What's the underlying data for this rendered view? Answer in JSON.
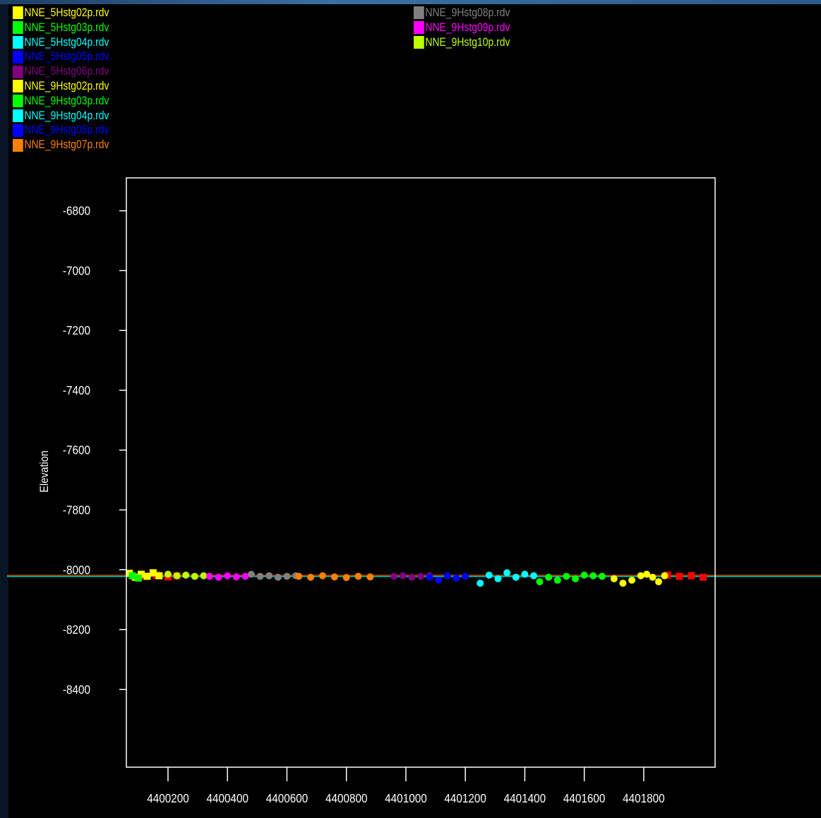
{
  "chart_data": {
    "type": "scatter",
    "title": "",
    "xlabel": "",
    "ylabel": "Elevation",
    "xlim": [
      4400060,
      4402040
    ],
    "ylim": [
      -8660,
      -6690
    ],
    "x_ticks": [
      4400200,
      4400400,
      4400600,
      4400800,
      4401000,
      4401200,
      4401400,
      4401600,
      4401800
    ],
    "y_ticks": [
      -6800,
      -7000,
      -7200,
      -7400,
      -7600,
      -7800,
      -8000,
      -8200,
      -8400
    ],
    "grid": false,
    "legend_placement": "top-left and top-center",
    "legend": [
      {
        "name": "NNE_5Hstg02p.rdv",
        "color": "#ffff00",
        "column": "left"
      },
      {
        "name": "NNE_5Hstg03p.rdv",
        "color": "#00ff00",
        "column": "left"
      },
      {
        "name": "NNE_5Hstg04p.rdv",
        "color": "#00ffff",
        "column": "left"
      },
      {
        "name": "NNE_5Hstg05p.rdv",
        "color": "#0000ff",
        "column": "left"
      },
      {
        "name": "NNE_5Hstg06p.rdv",
        "color": "#800080",
        "column": "left"
      },
      {
        "name": "NNE_9Hstg02p.rdv",
        "color": "#ffff00",
        "column": "left"
      },
      {
        "name": "NNE_9Hstg03p.rdv",
        "color": "#00ff00",
        "column": "left"
      },
      {
        "name": "NNE_9Hstg04p.rdv",
        "color": "#00ffff",
        "column": "left"
      },
      {
        "name": "NNE_9Hstg05p.rdv",
        "color": "#0000ff",
        "column": "left"
      },
      {
        "name": "NNE_9Hstg07p.rdv",
        "color": "#ff8000",
        "column": "left"
      },
      {
        "name": "NNE_9Hstg08p.rdv",
        "color": "#808080",
        "column": "right"
      },
      {
        "name": "NNE_9Hstg09p.rdv",
        "color": "#ff00ff",
        "column": "right"
      },
      {
        "name": "NNE_9Hstg10p.rdv",
        "color": "#bfff00",
        "column": "right"
      }
    ],
    "series": [
      {
        "color": "#ff0000",
        "x": [
          4401880,
          4401920,
          4401960,
          4402000,
          4400120,
          4400160,
          4400200,
          4400230
        ],
        "y": [
          -8018,
          -8022,
          -8020,
          -8025,
          -8022,
          -8018,
          -8024,
          -8020
        ]
      },
      {
        "color": "#ffff00",
        "x": [
          4400070,
          4400090,
          4400110,
          4400130,
          4400150,
          4400170,
          4401700,
          4401730,
          4401760,
          4401790,
          4401810,
          4401830,
          4401850,
          4401870
        ],
        "y": [
          -8012,
          -8025,
          -8015,
          -8022,
          -8010,
          -8020,
          -8030,
          -8045,
          -8035,
          -8020,
          -8015,
          -8025,
          -8040,
          -8020
        ]
      },
      {
        "color": "#00ff00",
        "x": [
          4400080,
          4400100,
          4401450,
          4401480,
          4401510,
          4401540,
          4401570,
          4401600,
          4401630,
          4401660
        ],
        "y": [
          -8020,
          -8028,
          -8040,
          -8025,
          -8035,
          -8022,
          -8030,
          -8018,
          -8020,
          -8022
        ]
      },
      {
        "color": "#bfff00",
        "x": [
          4400200,
          4400230,
          4400260,
          4400290,
          4400320
        ],
        "y": [
          -8015,
          -8020,
          -8018,
          -8022,
          -8020
        ]
      },
      {
        "color": "#ff00ff",
        "x": [
          4400340,
          4400370,
          4400400,
          4400430,
          4400460
        ],
        "y": [
          -8022,
          -8025,
          -8020,
          -8024,
          -8022
        ]
      },
      {
        "color": "#808080",
        "x": [
          4400480,
          4400510,
          4400540,
          4400570,
          4400600,
          4400630
        ],
        "y": [
          -8015,
          -8022,
          -8020,
          -8025,
          -8022,
          -8020
        ]
      },
      {
        "color": "#ff8000",
        "x": [
          4400640,
          4400680,
          4400720,
          4400760,
          4400800,
          4400840,
          4400880
        ],
        "y": [
          -8022,
          -8025,
          -8020,
          -8024,
          -8026,
          -8022,
          -8024
        ]
      },
      {
        "color": "#800080",
        "x": [
          4400960,
          4400990,
          4401020,
          4401050,
          4401080
        ],
        "y": [
          -8022,
          -8020,
          -8025,
          -8022,
          -8020
        ]
      },
      {
        "color": "#0000ff",
        "x": [
          4401080,
          4401110,
          4401140,
          4401170,
          4401200
        ],
        "y": [
          -8025,
          -8035,
          -8020,
          -8028,
          -8022
        ]
      },
      {
        "color": "#00ffff",
        "x": [
          4401250,
          4401280,
          4401310,
          4401340,
          4401370,
          4401400,
          4401430
        ],
        "y": [
          -8045,
          -8018,
          -8030,
          -8010,
          -8025,
          -8015,
          -8020
        ]
      }
    ]
  }
}
